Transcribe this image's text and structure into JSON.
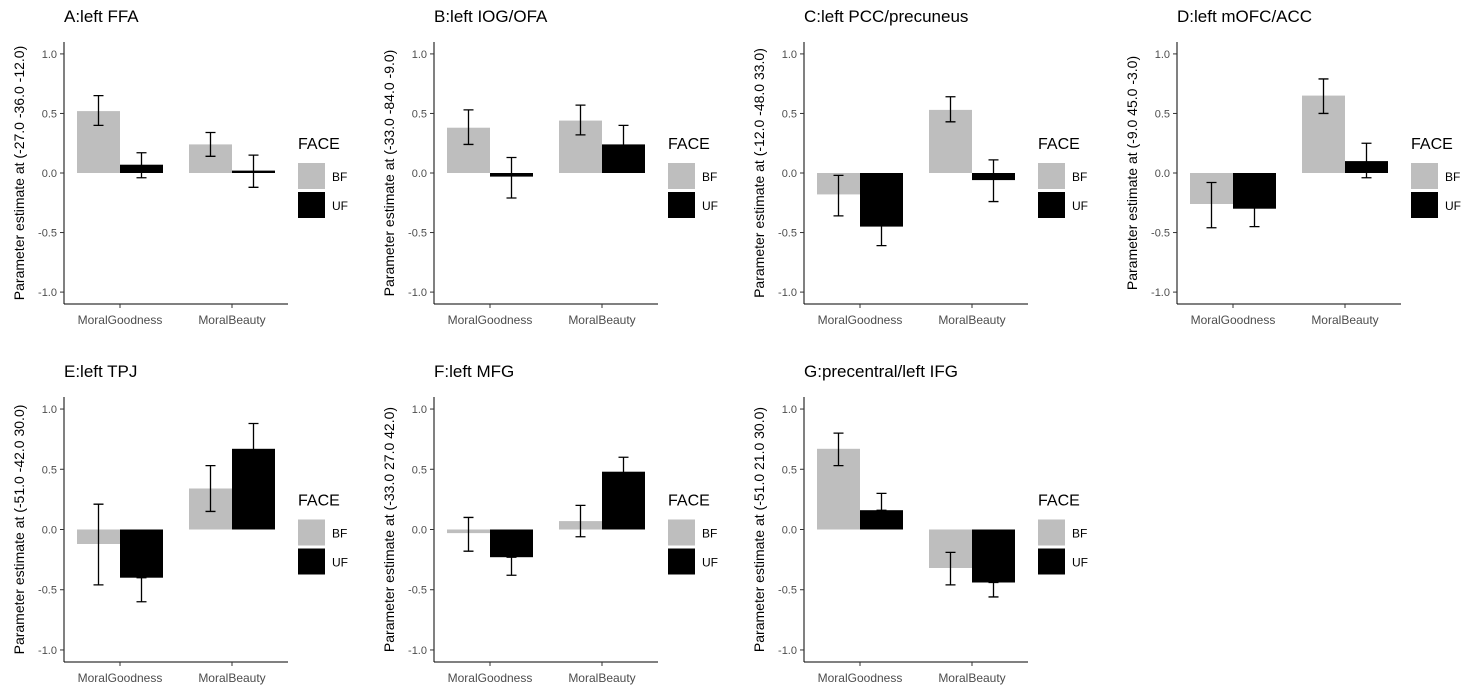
{
  "chart_data": [
    {
      "type": "bar",
      "title": "A:left FFA",
      "ylabel": "Parameter estimate at (-27.0 -36.0 -12.0)",
      "categories": [
        "MoralGoodness",
        "MoralBeauty"
      ],
      "series": [
        {
          "name": "BF",
          "color": "#bebebe",
          "values": [
            0.52,
            0.24
          ],
          "err_low": [
            0.4,
            0.14
          ],
          "err_high": [
            0.65,
            0.34
          ]
        },
        {
          "name": "UF",
          "color": "#000000",
          "values": [
            0.07,
            0.02
          ],
          "err_low": [
            -0.04,
            -0.12
          ],
          "err_high": [
            0.17,
            0.15
          ]
        }
      ],
      "ylim": [
        -1.1,
        1.1
      ],
      "yticks": [
        1.0,
        0.5,
        0.0,
        -0.5,
        -1.0
      ],
      "ytick_labels": [
        "1.0",
        "0.5",
        "0.0",
        "-0.5",
        "-1.0"
      ],
      "legend_title": "FACE",
      "legend_position": "right",
      "grid": false
    },
    {
      "type": "bar",
      "title": "B:left IOG/OFA",
      "ylabel": "Parameter estimate at (-33.0 -84.0 -9.0)",
      "categories": [
        "MoralGoodness",
        "MoralBeauty"
      ],
      "series": [
        {
          "name": "BF",
          "color": "#bebebe",
          "values": [
            0.38,
            0.44
          ],
          "err_low": [
            0.24,
            0.32
          ],
          "err_high": [
            0.53,
            0.57
          ]
        },
        {
          "name": "UF",
          "color": "#000000",
          "values": [
            -0.03,
            0.24
          ],
          "err_low": [
            -0.21,
            0.09
          ],
          "err_high": [
            0.13,
            0.4
          ]
        }
      ],
      "ylim": [
        -1.1,
        1.1
      ],
      "yticks": [
        1.0,
        0.5,
        0.0,
        -0.5,
        -1.0
      ],
      "ytick_labels": [
        "1.0",
        "0.5",
        "0.0",
        "-0.5",
        "-1.0"
      ],
      "legend_title": "FACE",
      "legend_position": "right",
      "grid": false
    },
    {
      "type": "bar",
      "title": "C:left PCC/precuneus",
      "ylabel": "Parameter estimate at (-12.0 -48.0 33.0)",
      "categories": [
        "MoralGoodness",
        "MoralBeauty"
      ],
      "series": [
        {
          "name": "BF",
          "color": "#bebebe",
          "values": [
            -0.18,
            0.53
          ],
          "err_low": [
            -0.36,
            0.43
          ],
          "err_high": [
            -0.02,
            0.64
          ]
        },
        {
          "name": "UF",
          "color": "#000000",
          "values": [
            -0.45,
            -0.06
          ],
          "err_low": [
            -0.61,
            -0.24
          ],
          "err_high": [
            -0.3,
            0.11
          ]
        }
      ],
      "ylim": [
        -1.1,
        1.1
      ],
      "yticks": [
        1.0,
        0.5,
        0.0,
        -0.5,
        -1.0
      ],
      "ytick_labels": [
        "1.0",
        "0.5",
        "0.0",
        "-0.5",
        "-1.0"
      ],
      "legend_title": "FACE",
      "legend_position": "right",
      "grid": false
    },
    {
      "type": "bar",
      "title": "D:left mOFC/ACC",
      "ylabel": "Parameter estimate at (-9.0 45.0 -3.0)",
      "categories": [
        "MoralGoodness",
        "MoralBeauty"
      ],
      "series": [
        {
          "name": "BF",
          "color": "#bebebe",
          "values": [
            -0.26,
            0.65
          ],
          "err_low": [
            -0.46,
            0.5
          ],
          "err_high": [
            -0.08,
            0.79
          ]
        },
        {
          "name": "UF",
          "color": "#000000",
          "values": [
            -0.3,
            0.1
          ],
          "err_low": [
            -0.45,
            -0.04
          ],
          "err_high": [
            -0.15,
            0.25
          ]
        }
      ],
      "ylim": [
        -1.1,
        1.1
      ],
      "yticks": [
        1.0,
        0.5,
        0.0,
        -0.5,
        -1.0
      ],
      "ytick_labels": [
        "1.0",
        "0.5",
        "0.0",
        "-0.5",
        "-1.0"
      ],
      "legend_title": "FACE",
      "legend_position": "right",
      "grid": false
    },
    {
      "type": "bar",
      "title": "E:left TPJ",
      "ylabel": "Parameter estimate at (-51.0 -42.0 30.0)",
      "categories": [
        "MoralGoodness",
        "MoralBeauty"
      ],
      "series": [
        {
          "name": "BF",
          "color": "#bebebe",
          "values": [
            -0.12,
            0.34
          ],
          "err_low": [
            -0.46,
            0.15
          ],
          "err_high": [
            0.21,
            0.53
          ]
        },
        {
          "name": "UF",
          "color": "#000000",
          "values": [
            -0.4,
            0.67
          ],
          "err_low": [
            -0.6,
            0.47
          ],
          "err_high": [
            -0.4,
            0.88
          ]
        }
      ],
      "ylim": [
        -1.1,
        1.1
      ],
      "yticks": [
        1.0,
        0.5,
        0.0,
        -0.5,
        -1.0
      ],
      "ytick_labels": [
        "1.0",
        "0.5",
        "0.0",
        "-0.5",
        "-1.0"
      ],
      "legend_title": "FACE",
      "legend_position": "right",
      "grid": false
    },
    {
      "type": "bar",
      "title": "F:left MFG",
      "ylabel": "Parameter estimate at (-33.0 27.0 42.0)",
      "categories": [
        "MoralGoodness",
        "MoralBeauty"
      ],
      "series": [
        {
          "name": "BF",
          "color": "#bebebe",
          "values": [
            -0.03,
            0.07
          ],
          "err_low": [
            -0.18,
            -0.06
          ],
          "err_high": [
            0.1,
            0.2
          ]
        },
        {
          "name": "UF",
          "color": "#000000",
          "values": [
            -0.23,
            0.48
          ],
          "err_low": [
            -0.38,
            0.35
          ],
          "err_high": [
            -0.23,
            0.6
          ]
        }
      ],
      "ylim": [
        -1.1,
        1.1
      ],
      "yticks": [
        1.0,
        0.5,
        0.0,
        -0.5,
        -1.0
      ],
      "ytick_labels": [
        "1.0",
        "0.5",
        "0.0",
        "-0.5",
        "-1.0"
      ],
      "legend_title": "FACE",
      "legend_position": "right",
      "grid": false
    },
    {
      "type": "bar",
      "title": "G:precentral/left IFG",
      "ylabel": "Parameter estimate at (-51.0 21.0 30.0)",
      "categories": [
        "MoralGoodness",
        "MoralBeauty"
      ],
      "series": [
        {
          "name": "BF",
          "color": "#bebebe",
          "values": [
            0.67,
            -0.32
          ],
          "err_low": [
            0.53,
            -0.46
          ],
          "err_high": [
            0.8,
            -0.19
          ]
        },
        {
          "name": "UF",
          "color": "#000000",
          "values": [
            0.16,
            -0.44
          ],
          "err_low": [
            0.16,
            -0.56
          ],
          "err_high": [
            0.3,
            -0.44
          ]
        }
      ],
      "ylim": [
        -1.1,
        1.1
      ],
      "yticks": [
        1.0,
        0.5,
        0.0,
        -0.5,
        -1.0
      ],
      "ytick_labels": [
        "1.0",
        "0.5",
        "0.0",
        "-0.5",
        "-1.0"
      ],
      "legend_title": "FACE",
      "legend_position": "right",
      "grid": false
    }
  ]
}
